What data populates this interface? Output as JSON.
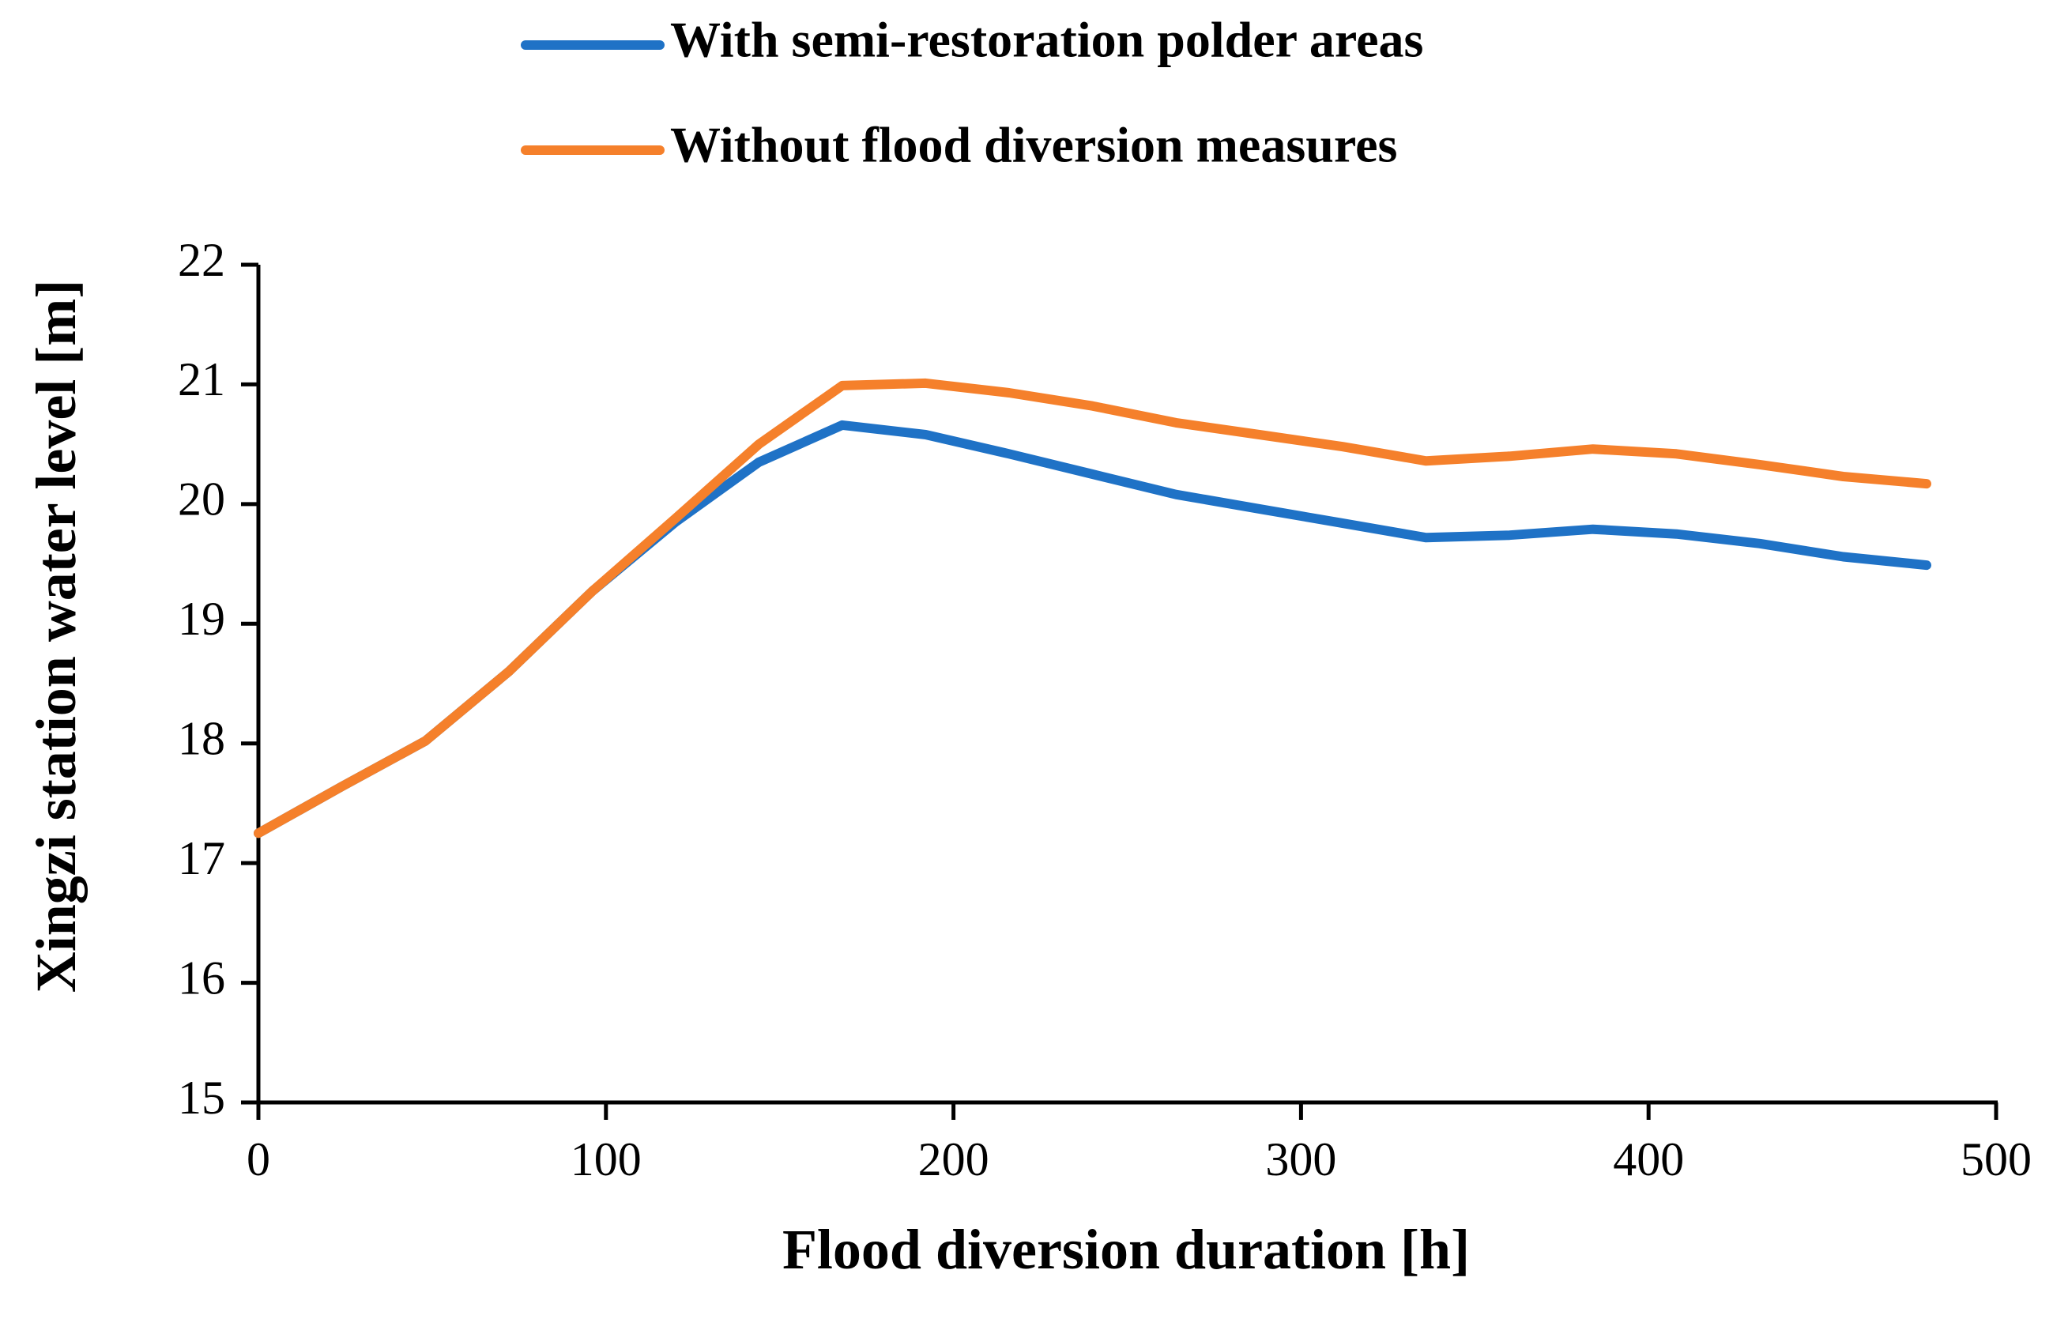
{
  "chart_data": {
    "type": "line",
    "title": "",
    "xlabel": "Flood diversion duration [h]",
    "ylabel": "Xingzi station water level [m]",
    "xlim": [
      0,
      500
    ],
    "ylim": [
      15,
      22
    ],
    "xticks": [
      "0",
      "100",
      "200",
      "300",
      "400",
      "500"
    ],
    "yticks": [
      "15",
      "16",
      "17",
      "18",
      "19",
      "20",
      "21",
      "22"
    ],
    "grid": false,
    "legend_position": "top-center",
    "series": [
      {
        "name": "With semi-restoration polder areas",
        "color": "#1f72c6",
        "x": [
          0,
          24,
          48,
          72,
          96,
          120,
          144,
          168,
          192,
          216,
          240,
          264,
          288,
          312,
          336,
          360,
          384,
          408,
          432,
          456,
          480
        ],
        "y": [
          17.25,
          17.64,
          18.02,
          18.6,
          19.27,
          19.85,
          20.35,
          20.66,
          20.58,
          20.42,
          20.25,
          20.08,
          19.96,
          19.84,
          19.72,
          19.74,
          19.79,
          19.75,
          19.67,
          19.56,
          19.49
        ]
      },
      {
        "name": "Without flood diversion measures",
        "color": "#f5802b",
        "x": [
          0,
          24,
          48,
          72,
          96,
          120,
          144,
          168,
          192,
          216,
          240,
          264,
          288,
          312,
          336,
          360,
          384,
          408,
          432,
          456,
          480
        ],
        "y": [
          17.25,
          17.64,
          18.02,
          18.6,
          19.27,
          19.88,
          20.5,
          20.99,
          21.01,
          20.93,
          20.82,
          20.68,
          20.58,
          20.48,
          20.36,
          20.4,
          20.46,
          20.42,
          20.33,
          20.23,
          20.17
        ]
      }
    ]
  }
}
